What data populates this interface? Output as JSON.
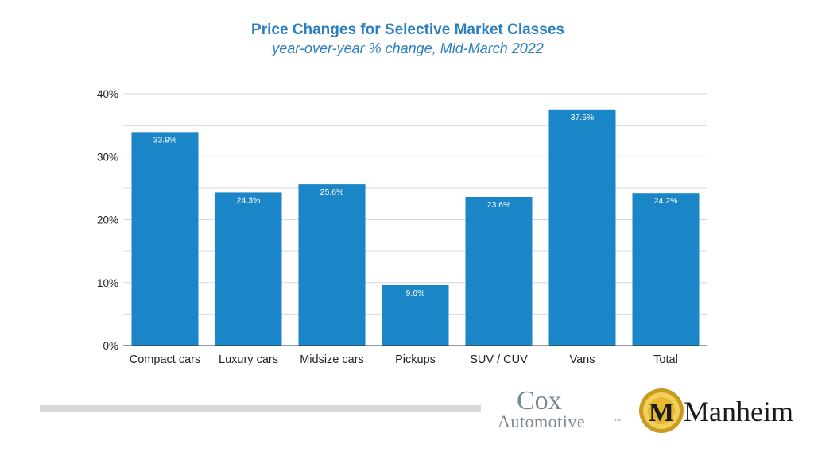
{
  "chart_data": {
    "type": "bar",
    "title": "Price Changes for Selective Market Classes",
    "subtitle": "year-over-year % change, Mid-March 2022",
    "categories": [
      "Compact cars",
      "Luxury cars",
      "Midsize cars",
      "Pickups",
      "SUV / CUV",
      "Vans",
      "Total"
    ],
    "values": [
      33.9,
      24.3,
      25.6,
      9.6,
      23.6,
      37.5,
      24.2
    ],
    "data_labels": [
      "33.9%",
      "24.3%",
      "25.6%",
      "9.6%",
      "23.6%",
      "37.5%",
      "24.2%"
    ],
    "y_ticks": [
      "0%",
      "10%",
      "20%",
      "30%",
      "40%"
    ],
    "y_tick_values": [
      0,
      10,
      20,
      30,
      40
    ],
    "ylim": [
      0,
      40
    ],
    "xlabel": "",
    "ylabel": "",
    "grid": true,
    "legend": "none",
    "bar_color": "#1a86c8"
  },
  "branding": {
    "cox_line1": "Cox",
    "cox_line2": "Automotive",
    "cox_tm": "™",
    "manheim": "Manheim",
    "manheim_badge_letter": "M"
  },
  "colors": {
    "title": "#2b7fc1",
    "gridline": "#d9d9d9",
    "footer_bar": "#d9d9d9",
    "badge_gold": "#e0b12f"
  }
}
